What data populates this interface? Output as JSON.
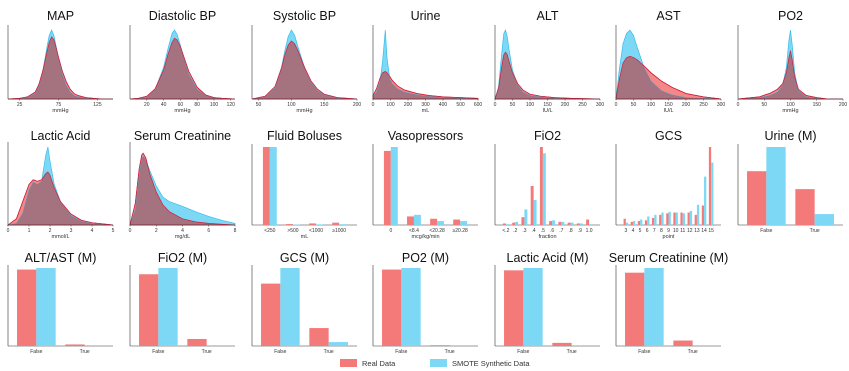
{
  "colors": {
    "real": "#F47A7A",
    "smote": "#7DD8F5",
    "real_line": "#D01F3C",
    "smote_line": "#38BDEB",
    "overlap": "#A5727F",
    "axis": "#333333"
  },
  "legend": {
    "real_label": "Real Data",
    "smote_label": "SMOTE Synthetic Data",
    "placement": "bottom-center"
  },
  "chart_data": [
    {
      "type": "area",
      "title": "MAP",
      "xlabel": "mmHg",
      "xlim": [
        10,
        145
      ],
      "xticks": [
        25,
        75,
        125
      ],
      "x": [
        10,
        25,
        35,
        45,
        50,
        55,
        60,
        63,
        66,
        69,
        72,
        75,
        80,
        85,
        90,
        95,
        100,
        110,
        120,
        130,
        145
      ],
      "series": [
        {
          "name": "Real Data",
          "values": [
            0,
            0.01,
            0.03,
            0.1,
            0.22,
            0.42,
            0.68,
            0.82,
            0.9,
            0.86,
            0.74,
            0.6,
            0.4,
            0.25,
            0.14,
            0.08,
            0.05,
            0.02,
            0.01,
            0,
            0
          ]
        },
        {
          "name": "SMOTE Synthetic Data",
          "values": [
            0,
            0,
            0.02,
            0.08,
            0.2,
            0.42,
            0.75,
            0.92,
            1.0,
            0.92,
            0.76,
            0.58,
            0.36,
            0.2,
            0.1,
            0.05,
            0.03,
            0.01,
            0,
            0,
            0
          ]
        }
      ]
    },
    {
      "type": "area",
      "title": "Diastolic BP",
      "xlabel": "mmHg",
      "xlim": [
        0,
        125
      ],
      "xticks": [
        20,
        40,
        60,
        80,
        100,
        120
      ],
      "x": [
        0,
        10,
        20,
        30,
        40,
        45,
        50,
        53,
        56,
        60,
        65,
        70,
        80,
        90,
        100,
        110,
        125
      ],
      "series": [
        {
          "name": "Real Data",
          "values": [
            0,
            0.01,
            0.04,
            0.15,
            0.42,
            0.64,
            0.82,
            0.88,
            0.86,
            0.76,
            0.58,
            0.4,
            0.17,
            0.06,
            0.02,
            0.01,
            0
          ]
        },
        {
          "name": "SMOTE Synthetic Data",
          "values": [
            0,
            0,
            0.03,
            0.14,
            0.46,
            0.72,
            0.95,
            1.0,
            0.94,
            0.78,
            0.56,
            0.36,
            0.14,
            0.05,
            0.02,
            0,
            0
          ]
        }
      ]
    },
    {
      "type": "area",
      "title": "Systolic BP",
      "xlabel": "mmHg",
      "xlim": [
        40,
        200
      ],
      "xticks": [
        50,
        100,
        150,
        200
      ],
      "x": [
        40,
        60,
        75,
        85,
        90,
        95,
        100,
        105,
        110,
        120,
        130,
        140,
        150,
        170,
        200
      ],
      "series": [
        {
          "name": "Real Data",
          "values": [
            0,
            0.04,
            0.18,
            0.45,
            0.64,
            0.78,
            0.84,
            0.8,
            0.7,
            0.46,
            0.26,
            0.14,
            0.07,
            0.02,
            0
          ]
        },
        {
          "name": "SMOTE Synthetic Data",
          "values": [
            0,
            0.03,
            0.16,
            0.46,
            0.7,
            0.9,
            1.0,
            0.92,
            0.76,
            0.46,
            0.24,
            0.12,
            0.06,
            0.01,
            0
          ]
        }
      ]
    },
    {
      "type": "area",
      "title": "Urine",
      "xlabel": "mL",
      "xlim": [
        0,
        600
      ],
      "xticks": [
        0,
        100,
        200,
        300,
        400,
        500,
        600
      ],
      "x": [
        0,
        20,
        40,
        55,
        70,
        80,
        95,
        110,
        140,
        180,
        250,
        320,
        400,
        500,
        600
      ],
      "series": [
        {
          "name": "Real Data",
          "values": [
            0.05,
            0.15,
            0.3,
            0.38,
            0.4,
            0.38,
            0.33,
            0.27,
            0.19,
            0.13,
            0.08,
            0.05,
            0.03,
            0.02,
            0.01
          ]
        },
        {
          "name": "SMOTE Synthetic Data",
          "values": [
            0.03,
            0.1,
            0.25,
            0.55,
            1.0,
            0.6,
            0.3,
            0.22,
            0.15,
            0.1,
            0.06,
            0.04,
            0.02,
            0.01,
            0.01
          ]
        }
      ]
    },
    {
      "type": "area",
      "title": "ALT",
      "xlabel": "IU/L",
      "xlim": [
        0,
        300
      ],
      "xticks": [
        0,
        50,
        100,
        150,
        200,
        250,
        300
      ],
      "x": [
        0,
        10,
        20,
        25,
        30,
        35,
        40,
        50,
        65,
        80,
        100,
        130,
        170,
        220,
        300
      ],
      "series": [
        {
          "name": "Real Data",
          "values": [
            0,
            0.15,
            0.5,
            0.64,
            0.68,
            0.64,
            0.55,
            0.38,
            0.22,
            0.13,
            0.07,
            0.04,
            0.02,
            0.01,
            0
          ]
        },
        {
          "name": "SMOTE Synthetic Data",
          "values": [
            0,
            0.18,
            0.7,
            0.95,
            1.0,
            0.9,
            0.72,
            0.42,
            0.2,
            0.1,
            0.05,
            0.03,
            0.01,
            0,
            0
          ]
        }
      ]
    },
    {
      "type": "area",
      "title": "AST",
      "xlabel": "IU/L",
      "xlim": [
        0,
        300
      ],
      "xticks": [
        0,
        50,
        100,
        150,
        200,
        250,
        300
      ],
      "x": [
        0,
        10,
        20,
        30,
        40,
        50,
        60,
        80,
        100,
        130,
        160,
        200,
        250,
        300
      ],
      "series": [
        {
          "name": "Real Data",
          "values": [
            0,
            0.3,
            0.52,
            0.6,
            0.62,
            0.6,
            0.57,
            0.48,
            0.38,
            0.26,
            0.17,
            0.08,
            0.03,
            0
          ]
        },
        {
          "name": "SMOTE Synthetic Data",
          "values": [
            0,
            0.45,
            0.8,
            0.95,
            1.0,
            0.92,
            0.76,
            0.46,
            0.26,
            0.12,
            0.06,
            0.02,
            0.01,
            0
          ]
        }
      ]
    },
    {
      "type": "area",
      "title": "PO2",
      "xlabel": "mmHg",
      "xlim": [
        0,
        200
      ],
      "xticks": [
        0,
        50,
        100,
        150,
        200
      ],
      "x": [
        0,
        40,
        60,
        75,
        85,
        92,
        97,
        100,
        103,
        108,
        115,
        130,
        150,
        170,
        200
      ],
      "series": [
        {
          "name": "Real Data",
          "values": [
            0,
            0.03,
            0.08,
            0.14,
            0.22,
            0.38,
            0.6,
            0.7,
            0.58,
            0.32,
            0.14,
            0.05,
            0.02,
            0,
            0
          ]
        },
        {
          "name": "SMOTE Synthetic Data",
          "values": [
            0,
            0.02,
            0.05,
            0.1,
            0.2,
            0.45,
            0.85,
            1.0,
            0.8,
            0.38,
            0.12,
            0.03,
            0.01,
            0,
            0
          ]
        }
      ]
    },
    {
      "type": "area",
      "title": "Lactic Acid",
      "xlabel": "mmol/L",
      "xlim": [
        0,
        5
      ],
      "xticks": [
        0,
        1,
        2,
        3,
        4,
        5
      ],
      "x": [
        0,
        0.4,
        0.7,
        1.0,
        1.2,
        1.4,
        1.6,
        1.8,
        1.9,
        2.0,
        2.2,
        2.5,
        3.0,
        3.5,
        4.0,
        5.0
      ],
      "series": [
        {
          "name": "Real Data",
          "values": [
            0,
            0.08,
            0.3,
            0.52,
            0.58,
            0.56,
            0.58,
            0.66,
            0.68,
            0.64,
            0.48,
            0.3,
            0.14,
            0.06,
            0.03,
            0
          ]
        },
        {
          "name": "SMOTE Synthetic Data",
          "values": [
            0,
            0.02,
            0.15,
            0.45,
            0.55,
            0.52,
            0.56,
            0.9,
            1.0,
            0.82,
            0.52,
            0.3,
            0.12,
            0.05,
            0.02,
            0
          ]
        }
      ]
    },
    {
      "type": "area",
      "title": "Serum Creatinine",
      "xlabel": "mg/dL",
      "xlim": [
        0,
        8
      ],
      "xticks": [
        0,
        2,
        4,
        6,
        8
      ],
      "x": [
        0,
        0.4,
        0.7,
        0.9,
        1.0,
        1.2,
        1.5,
        2.0,
        2.5,
        3.0,
        4.0,
        5.0,
        6.0,
        7.0,
        8.0
      ],
      "series": [
        {
          "name": "Real Data",
          "values": [
            0,
            0.28,
            0.72,
            0.9,
            0.92,
            0.86,
            0.66,
            0.42,
            0.26,
            0.17,
            0.08,
            0.04,
            0.02,
            0.01,
            0
          ]
        },
        {
          "name": "SMOTE Synthetic Data",
          "values": [
            0,
            0.2,
            0.64,
            0.85,
            0.88,
            0.84,
            0.7,
            0.5,
            0.36,
            0.3,
            0.24,
            0.17,
            0.11,
            0.06,
            0.02
          ]
        }
      ]
    },
    {
      "type": "bar",
      "title": "Fluid Boluses",
      "xlabel": "mL",
      "categories": [
        "<250",
        ">500",
        "<1000",
        "≥1000"
      ],
      "series": [
        {
          "name": "Real Data",
          "values": [
            1.0,
            0.012,
            0.02,
            0.03
          ]
        },
        {
          "name": "SMOTE Synthetic Data",
          "values": [
            1.0,
            0.006,
            0.008,
            0.01
          ]
        }
      ]
    },
    {
      "type": "bar",
      "title": "Vasopressors",
      "xlabel": "mcg/kg/min",
      "categories": [
        "0",
        "<8.4",
        "<20.28",
        "≥20.28"
      ],
      "series": [
        {
          "name": "Real Data",
          "values": [
            0.95,
            0.11,
            0.08,
            0.07
          ]
        },
        {
          "name": "SMOTE Synthetic Data",
          "values": [
            1.0,
            0.13,
            0.05,
            0.05
          ]
        }
      ]
    },
    {
      "type": "bar",
      "title": "FiO2",
      "xlabel": "fraction",
      "categories": [
        "<.2",
        ".2",
        ".3",
        ".4",
        ".5",
        ".6",
        ".7",
        ".8",
        ".9",
        "1.0"
      ],
      "series": [
        {
          "name": "Real Data",
          "values": [
            0.02,
            0.03,
            0.1,
            0.5,
            1.0,
            0.05,
            0.04,
            0.03,
            0.02,
            0.07
          ]
        },
        {
          "name": "SMOTE Synthetic Data",
          "values": [
            0.01,
            0.04,
            0.2,
            0.32,
            0.92,
            0.06,
            0.04,
            0.03,
            0.02,
            0.01
          ]
        }
      ]
    },
    {
      "type": "bar",
      "title": "GCS",
      "xlabel": "point",
      "categories": [
        "3",
        "4",
        "5",
        "6",
        "7",
        "8",
        "9",
        "10",
        "11",
        "12",
        "13",
        "14",
        "15"
      ],
      "series": [
        {
          "name": "Real Data",
          "values": [
            0.08,
            0.04,
            0.05,
            0.06,
            0.09,
            0.13,
            0.15,
            0.16,
            0.16,
            0.16,
            0.13,
            0.25,
            1.0
          ]
        },
        {
          "name": "SMOTE Synthetic Data",
          "values": [
            0.03,
            0.05,
            0.07,
            0.11,
            0.13,
            0.16,
            0.17,
            0.16,
            0.15,
            0.18,
            0.26,
            0.62,
            0.8
          ]
        }
      ]
    },
    {
      "type": "bar",
      "title": "Urine (M)",
      "xlabel": "",
      "categories": [
        "False",
        "True"
      ],
      "series": [
        {
          "name": "Real Data",
          "values": [
            0.69,
            0.46
          ]
        },
        {
          "name": "SMOTE Synthetic Data",
          "values": [
            1.0,
            0.14
          ]
        }
      ]
    },
    {
      "type": "bar",
      "title": "ALT/AST (M)",
      "xlabel": "",
      "categories": [
        "False",
        "True"
      ],
      "series": [
        {
          "name": "Real Data",
          "values": [
            0.98,
            0.02
          ]
        },
        {
          "name": "SMOTE Synthetic Data",
          "values": [
            1.0,
            0.0
          ]
        }
      ]
    },
    {
      "type": "bar",
      "title": "FiO2 (M)",
      "xlabel": "",
      "categories": [
        "False",
        "True"
      ],
      "series": [
        {
          "name": "Real Data",
          "values": [
            0.92,
            0.09
          ]
        },
        {
          "name": "SMOTE Synthetic Data",
          "values": [
            1.0,
            0.0
          ]
        }
      ]
    },
    {
      "type": "bar",
      "title": "GCS (M)",
      "xlabel": "",
      "categories": [
        "False",
        "True"
      ],
      "series": [
        {
          "name": "Real Data",
          "values": [
            0.8,
            0.23
          ]
        },
        {
          "name": "SMOTE Synthetic Data",
          "values": [
            1.0,
            0.05
          ]
        }
      ]
    },
    {
      "type": "bar",
      "title": "PO2 (M)",
      "xlabel": "",
      "categories": [
        "False",
        "True"
      ],
      "series": [
        {
          "name": "Real Data",
          "values": [
            0.98,
            0.01
          ]
        },
        {
          "name": "SMOTE Synthetic Data",
          "values": [
            1.0,
            0.0
          ]
        }
      ]
    },
    {
      "type": "bar",
      "title": "Lactic Acid (M)",
      "xlabel": "",
      "categories": [
        "False",
        "True"
      ],
      "series": [
        {
          "name": "Real Data",
          "values": [
            0.97,
            0.04
          ]
        },
        {
          "name": "SMOTE Synthetic Data",
          "values": [
            1.0,
            0.01
          ]
        }
      ]
    },
    {
      "type": "bar",
      "title": "Serum Creatinine (M)",
      "xlabel": "",
      "categories": [
        "False",
        "True"
      ],
      "series": [
        {
          "name": "Real Data",
          "values": [
            0.94,
            0.07
          ]
        },
        {
          "name": "SMOTE Synthetic Data",
          "values": [
            1.0,
            0.0
          ]
        }
      ]
    }
  ]
}
